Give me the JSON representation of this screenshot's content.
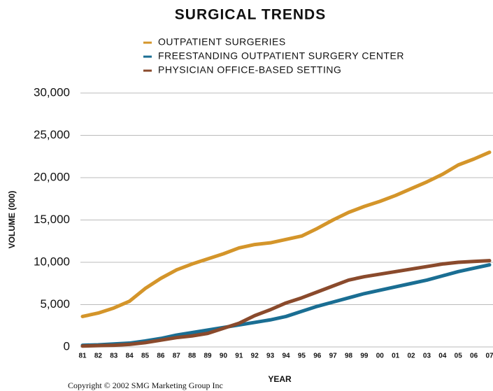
{
  "chart_data": {
    "type": "line",
    "title": "SURGICAL TRENDS",
    "xlabel": "YEAR",
    "ylabel": "VOLUME (000)",
    "footer": "Copyright © 2002 SMG Marketing Group Inc",
    "categories": [
      "81",
      "82",
      "83",
      "84",
      "85",
      "86",
      "87",
      "88",
      "89",
      "90",
      "91",
      "92",
      "93",
      "94",
      "95",
      "96",
      "97",
      "98",
      "99",
      "00",
      "01",
      "02",
      "03",
      "04",
      "05",
      "06",
      "07"
    ],
    "series": [
      {
        "name": "OUTPATIENT SURGERIES",
        "color": "#d4952a",
        "values": [
          3600,
          4000,
          4600,
          5400,
          6900,
          8100,
          9100,
          9800,
          10400,
          11000,
          11700,
          12100,
          12300,
          12700,
          13100,
          14000,
          15000,
          15900,
          16600,
          17200,
          17900,
          18700,
          19500,
          20400,
          21500,
          22200,
          23000
        ]
      },
      {
        "name": "FREESTANDING OUTPATIENT SURGERY CENTER",
        "color": "#1a6e93",
        "values": [
          200,
          250,
          350,
          450,
          700,
          1000,
          1400,
          1700,
          2000,
          2300,
          2600,
          2900,
          3200,
          3600,
          4200,
          4800,
          5300,
          5800,
          6300,
          6700,
          7100,
          7500,
          7900,
          8400,
          8900,
          9300,
          9700
        ]
      },
      {
        "name": "PHYSICIAN OFFICE-BASED SETTING",
        "color": "#8a4a2c",
        "values": [
          100,
          150,
          200,
          300,
          500,
          800,
          1100,
          1300,
          1600,
          2200,
          2800,
          3700,
          4400,
          5200,
          5800,
          6500,
          7200,
          7900,
          8300,
          8600,
          8900,
          9200,
          9500,
          9800,
          10000,
          10100,
          10200
        ]
      }
    ],
    "ylim": [
      0,
      30000
    ],
    "yticks": [
      0,
      {
        "value": 5000,
        "label": "5,000"
      },
      {
        "value": 10000,
        "label": "10,000"
      },
      {
        "value": 15000,
        "label": "15,000"
      },
      {
        "value": 20000,
        "label": "20,000"
      },
      {
        "value": 25000,
        "label": "25,000"
      },
      {
        "value": 30000,
        "label": "30,000"
      }
    ],
    "grid": true
  }
}
